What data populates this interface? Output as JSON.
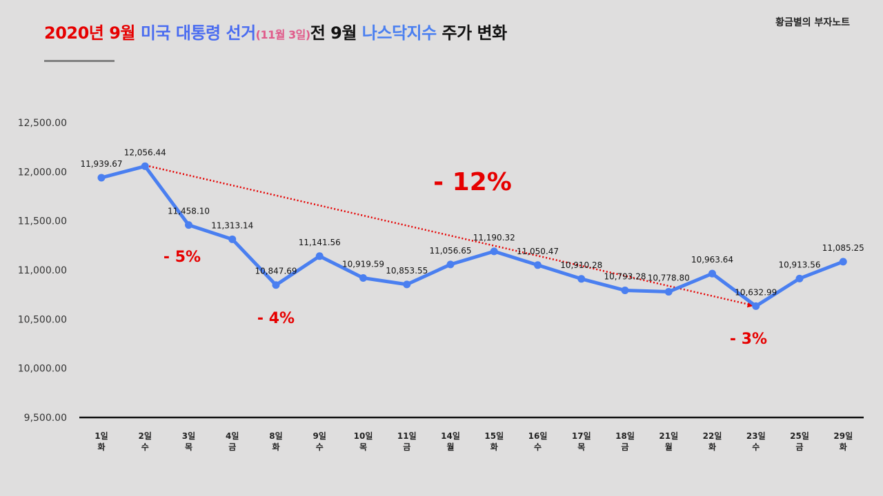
{
  "title": {
    "part1": "2020년 9월",
    "part2": "미국 대통령 선거",
    "part3": "(11월 3일)",
    "part4": "전 9월",
    "part5": "나스닥지수",
    "part6": "주가 변화",
    "color_red": "#e60000",
    "color_blue": "#4a6cf0",
    "color_pink": "#e05a8a",
    "color_black": "#111111"
  },
  "brand": "황금별의 부자노트",
  "chart_data": {
    "type": "line",
    "title": "2020년 9월 미국 대통령 선거(11월 3일)전 9월 나스닥지수 주가 변화",
    "categories": [
      [
        "1일",
        "화"
      ],
      [
        "2일",
        "수"
      ],
      [
        "3일",
        "목"
      ],
      [
        "4일",
        "금"
      ],
      [
        "8일",
        "화"
      ],
      [
        "9일",
        "수"
      ],
      [
        "10일",
        "목"
      ],
      [
        "11일",
        "금"
      ],
      [
        "14일",
        "월"
      ],
      [
        "15일",
        "화"
      ],
      [
        "16일",
        "수"
      ],
      [
        "17일",
        "목"
      ],
      [
        "18일",
        "금"
      ],
      [
        "21일",
        "월"
      ],
      [
        "22일",
        "화"
      ],
      [
        "23일",
        "수"
      ],
      [
        "25일",
        "금"
      ],
      [
        "29일",
        "화"
      ]
    ],
    "series": [
      {
        "values": [
          11939.67,
          12056.44,
          11458.1,
          11313.14,
          10847.69,
          11141.56,
          10919.59,
          10853.55,
          11056.65,
          11190.32,
          11050.47,
          10910.28,
          10793.28,
          10778.8,
          10963.64,
          10632.99,
          10913.56,
          11085.25
        ],
        "labels": [
          "11,939.67",
          "12,056.44",
          "11,458.10",
          "11,313.14",
          "10,847.69",
          "11,141.56",
          "10,919.59",
          "10,853.55",
          "11,056.65",
          "11,190.32",
          "11,050.47",
          "10,910.28",
          "10,793.28",
          "10,778.80",
          "10,963.64",
          "10,632.99",
          "10,913.56",
          "11,085.25"
        ],
        "color": "#4a7ff0"
      }
    ],
    "ylim": [
      9500,
      12500
    ],
    "yticks": [
      9500,
      10000,
      10500,
      11000,
      11500,
      12000,
      12500
    ],
    "ytick_labels": [
      "9,500.00",
      "10,000.00",
      "10,500.00",
      "11,000.00",
      "11,500.00",
      "12,000.00",
      "12,500.00"
    ],
    "grid": false,
    "annotations": [
      {
        "text": "- 12%",
        "color": "#e60000"
      },
      {
        "text": "- 5%",
        "color": "#e60000"
      },
      {
        "text": "- 4%",
        "color": "#e60000"
      },
      {
        "text": "- 3%",
        "color": "#e60000"
      }
    ],
    "trend_arrow": {
      "from_index": 1,
      "to_index": 15,
      "color": "#e60000"
    }
  }
}
